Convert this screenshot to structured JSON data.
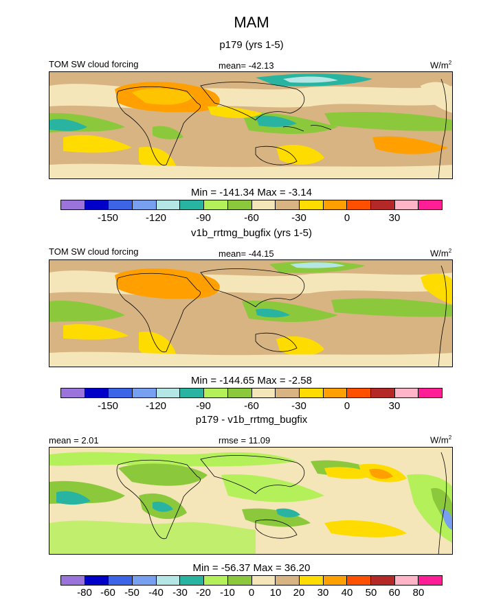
{
  "title": "MAM",
  "panels": [
    {
      "subtitle": "p179 (yrs 1-5)",
      "left_label": "TOM SW cloud forcing",
      "center_label": "mean= -42.13",
      "units": "W/m",
      "units_sup": "2",
      "minmax": "Min = -141.34 Max =  -3.14",
      "colorbar": {
        "colors": [
          "#9a73db",
          "#0000c8",
          "#3c64e6",
          "#78a0f0",
          "#b4e6e6",
          "#28b4a0",
          "#b4f05a",
          "#8cc83c",
          "#f5e6b9",
          "#d7b482",
          "#ffdc00",
          "#ffa000",
          "#ff5000",
          "#b42828",
          "#ffb4c8",
          "#ff1e96"
        ],
        "ticks": [
          "-150",
          "-120",
          "-90",
          "-60",
          "-30",
          "0",
          "30"
        ]
      }
    },
    {
      "subtitle": "v1b_rrtmg_bugfix (yrs 1-5)",
      "left_label": "TOM SW cloud forcing",
      "center_label": "mean= -44.15",
      "units": "W/m",
      "units_sup": "2",
      "minmax": "Min = -144.65 Max =  -2.58",
      "colorbar": {
        "colors": [
          "#9a73db",
          "#0000c8",
          "#3c64e6",
          "#78a0f0",
          "#b4e6e6",
          "#28b4a0",
          "#b4f05a",
          "#8cc83c",
          "#f5e6b9",
          "#d7b482",
          "#ffdc00",
          "#ffa000",
          "#ff5000",
          "#b42828",
          "#ffb4c8",
          "#ff1e96"
        ],
        "ticks": [
          "-150",
          "-120",
          "-90",
          "-60",
          "-30",
          "0",
          "30"
        ]
      }
    },
    {
      "subtitle": "p179 - v1b_rrtmg_bugfix",
      "left_label": "mean =   2.01",
      "center_label": "rmse =   11.09",
      "units": "W/m",
      "units_sup": "2",
      "minmax": "Min = -56.37 Max =  36.20",
      "colorbar": {
        "colors": [
          "#9a73db",
          "#0000c8",
          "#3c64e6",
          "#78a0f0",
          "#b4e6e6",
          "#28b4a0",
          "#b4f05a",
          "#8cc83c",
          "#f5e6b9",
          "#d7b482",
          "#ffdc00",
          "#ffa000",
          "#ff5000",
          "#b42828",
          "#ffb4c8",
          "#ff1e96"
        ],
        "ticks": [
          "-80",
          "-60",
          "-50",
          "-40",
          "-30",
          "-20",
          "-10",
          "0",
          "10",
          "20",
          "30",
          "40",
          "50",
          "60",
          "80"
        ]
      }
    }
  ]
}
